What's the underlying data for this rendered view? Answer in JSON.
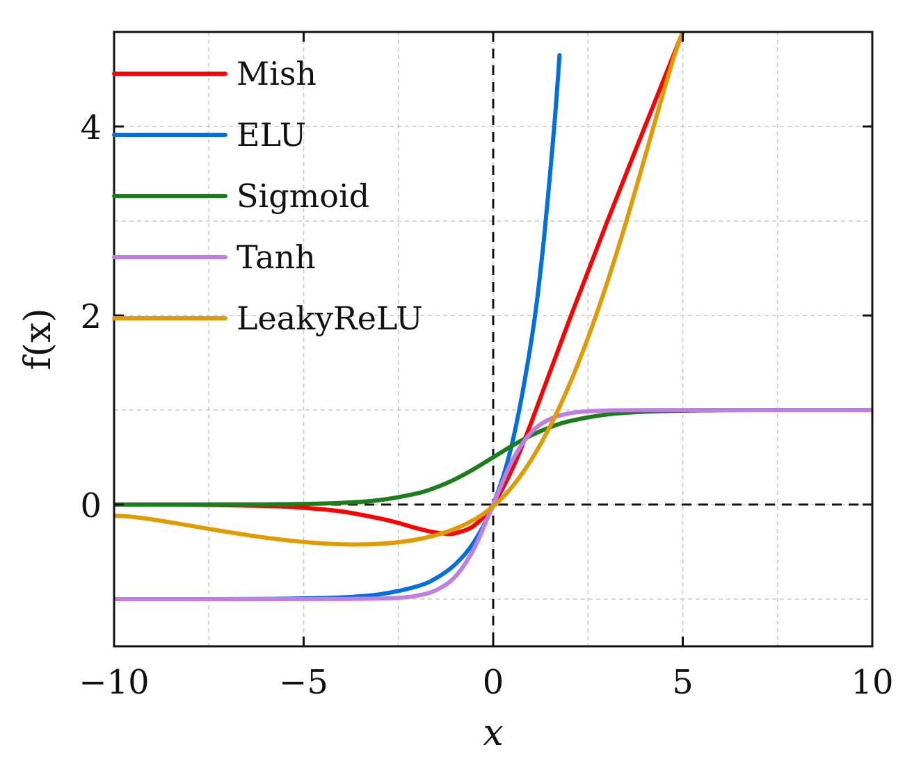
{
  "chart_data": {
    "type": "line",
    "title": "",
    "xlabel": "x",
    "ylabel": "f(x)",
    "xlim": [
      -10,
      10
    ],
    "ylim": [
      -1.5,
      5
    ],
    "xticks": [
      -10,
      -5,
      0,
      5,
      10
    ],
    "xtick_labels": [
      "−10",
      "−5",
      "0",
      "5",
      "10"
    ],
    "yticks": [
      0,
      2,
      4
    ],
    "ytick_labels": [
      "0",
      "2",
      "4"
    ],
    "grid": true,
    "legend_position": "top-left",
    "reference_lines": [
      {
        "orientation": "vertical",
        "value": 0,
        "style": "dashed"
      },
      {
        "orientation": "horizontal",
        "value": 0,
        "style": "dashed"
      }
    ],
    "series": [
      {
        "name": "Mish",
        "color": "#ff0000",
        "x": [
          -10,
          -8,
          -6,
          -5,
          -4,
          -3,
          -2.5,
          -2,
          -1.5,
          -1.19,
          -1,
          -0.5,
          0,
          0.5,
          1,
          2,
          3,
          4,
          5
        ],
        "y": [
          -0.0005,
          -0.003,
          -0.015,
          -0.034,
          -0.073,
          -0.146,
          -0.195,
          -0.253,
          -0.298,
          -0.309,
          -0.303,
          -0.222,
          0,
          0.375,
          0.865,
          1.944,
          2.987,
          3.997,
          4.999
        ]
      },
      {
        "name": "ELU",
        "color": "#0070e0",
        "x": [
          -10,
          -8,
          -6,
          -5,
          -4,
          -3,
          -2,
          -1.5,
          -1,
          -0.5,
          0,
          0.5,
          1,
          1.3,
          1.6,
          1.75
        ],
        "y": [
          -1.0,
          -1.0,
          -0.998,
          -0.993,
          -0.982,
          -0.95,
          -0.865,
          -0.777,
          -0.632,
          -0.393,
          0,
          0.649,
          1.718,
          2.669,
          3.953,
          4.755
        ]
      },
      {
        "name": "Sigmoid",
        "color": "#1a7f1a",
        "x": [
          -10,
          -8,
          -6,
          -5,
          -4,
          -3,
          -2,
          -1.5,
          -1,
          -0.5,
          0,
          0.5,
          1,
          1.5,
          2,
          3,
          4,
          5,
          6,
          7
        ],
        "y": [
          0.0,
          0.0003,
          0.0025,
          0.0067,
          0.018,
          0.047,
          0.119,
          0.182,
          0.269,
          0.378,
          0.5,
          0.622,
          0.731,
          0.818,
          0.881,
          0.953,
          0.982,
          0.993,
          0.998,
          1.0
        ]
      },
      {
        "name": "Tanh",
        "color": "#c07fe0",
        "x": [
          -10,
          -6,
          -4,
          -3,
          -2.5,
          -2,
          -1.5,
          -1,
          -0.5,
          0,
          0.5,
          1,
          1.5,
          2,
          2.5,
          3,
          4,
          6,
          10
        ],
        "y": [
          -1.0,
          -1.0,
          -0.999,
          -0.995,
          -0.987,
          -0.964,
          -0.905,
          -0.762,
          -0.462,
          0,
          0.462,
          0.762,
          0.905,
          0.964,
          0.987,
          0.995,
          0.999,
          1.0,
          1.0
        ]
      },
      {
        "name": "LeakyReLU",
        "color": "#e09b00",
        "x": [
          -10,
          0,
          5
        ],
        "y": [
          -0.12,
          -0.02,
          5.0
        ]
      }
    ]
  }
}
